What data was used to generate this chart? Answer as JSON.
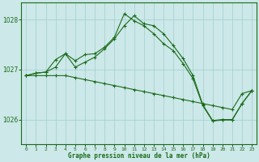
{
  "bg_color": "#cce8e8",
  "plot_bg_color": "#cce8e8",
  "line_color": "#1a6b1a",
  "grid_color": "#a0cfcf",
  "xlabel": "Graphe pression niveau de la mer (hPa)",
  "yticks": [
    1026,
    1027,
    1028
  ],
  "xtick_labels": [
    "0",
    "1",
    "2",
    "3",
    "4",
    "5",
    "6",
    "7",
    "8",
    "9",
    "10",
    "11",
    "12",
    "13",
    "14",
    "15",
    "16",
    "17",
    "18",
    "19",
    "20",
    "21",
    "22",
    "23"
  ],
  "xlim": [
    -0.5,
    23.5
  ],
  "ylim": [
    1025.5,
    1028.35
  ],
  "line1_x": [
    0,
    1,
    2,
    3,
    4,
    5,
    6,
    7,
    8,
    9,
    10,
    11,
    12,
    13,
    14,
    15,
    16,
    17,
    18,
    19,
    20,
    21,
    22,
    23
  ],
  "line1_y": [
    1026.88,
    1026.93,
    1026.95,
    1027.2,
    1027.32,
    1027.05,
    1027.15,
    1027.25,
    1027.42,
    1027.62,
    1027.88,
    1028.08,
    1027.92,
    1027.88,
    1027.72,
    1027.48,
    1027.22,
    1026.88,
    1026.3,
    1025.98,
    1026.0,
    1026.0,
    1026.32,
    1026.58
  ],
  "line2_x": [
    0,
    1,
    2,
    3,
    4,
    5,
    6,
    7,
    8,
    9,
    10,
    11,
    12,
    13,
    14,
    15,
    16,
    17,
    18,
    19,
    20,
    21,
    22,
    23
  ],
  "line2_y": [
    1026.88,
    1026.88,
    1026.88,
    1026.88,
    1026.88,
    1026.84,
    1026.8,
    1026.76,
    1026.72,
    1026.68,
    1026.64,
    1026.6,
    1026.56,
    1026.52,
    1026.48,
    1026.44,
    1026.4,
    1026.36,
    1026.32,
    1026.28,
    1026.24,
    1026.2,
    1026.52,
    1026.58
  ],
  "line3_x": [
    0,
    1,
    2,
    3,
    4,
    5,
    6,
    7,
    8,
    9,
    10,
    11,
    12,
    13,
    14,
    15,
    16,
    17,
    18,
    19,
    20,
    21,
    22,
    23
  ],
  "line3_y": [
    1026.88,
    1026.93,
    1026.95,
    1027.05,
    1027.32,
    1027.18,
    1027.3,
    1027.32,
    1027.45,
    1027.65,
    1028.12,
    1027.98,
    1027.88,
    1027.72,
    1027.52,
    1027.38,
    1027.12,
    1026.82,
    1026.28,
    1025.97,
    1025.99,
    1025.99,
    1026.32,
    1026.58
  ]
}
